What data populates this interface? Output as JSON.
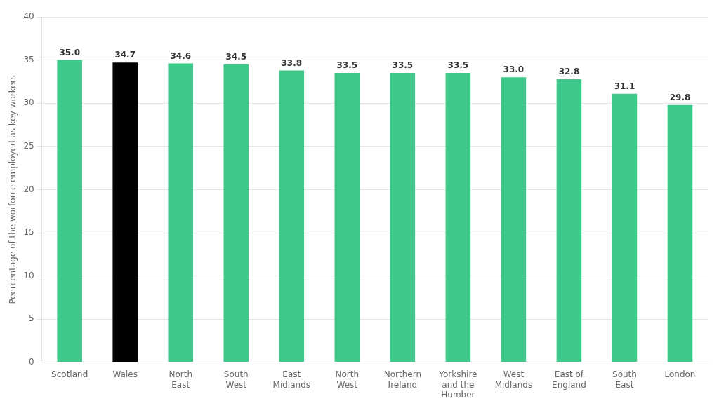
{
  "chart_data": {
    "type": "bar",
    "categories": [
      "Scotland",
      "Wales",
      "North\nEast",
      "South\nWest",
      "East\nMidlands",
      "North\nWest",
      "Northern\nIreland",
      "Yorkshire\nand the\nHumber",
      "West\nMidlands",
      "East of\nEngland",
      "South\nEast",
      "London"
    ],
    "values": [
      35.0,
      34.7,
      34.6,
      34.5,
      33.8,
      33.5,
      33.5,
      33.5,
      33.0,
      32.8,
      31.1,
      29.8
    ],
    "value_labels": [
      "35.0",
      "34.7",
      "34.6",
      "34.5",
      "33.8",
      "33.5",
      "33.5",
      "33.5",
      "33.0",
      "32.8",
      "31.1",
      "29.8"
    ],
    "colors": [
      "#3ec98a",
      "#000000",
      "#3ec98a",
      "#3ec98a",
      "#3ec98a",
      "#3ec98a",
      "#3ec98a",
      "#3ec98a",
      "#3ec98a",
      "#3ec98a",
      "#3ec98a",
      "#3ec98a"
    ],
    "ylabel": "Peercentage of the worforce employed as key workers",
    "ylim": [
      0,
      40
    ],
    "yticks": [
      0,
      5,
      10,
      15,
      20,
      25,
      30,
      35,
      40
    ],
    "grid": true,
    "data_labels": true
  }
}
